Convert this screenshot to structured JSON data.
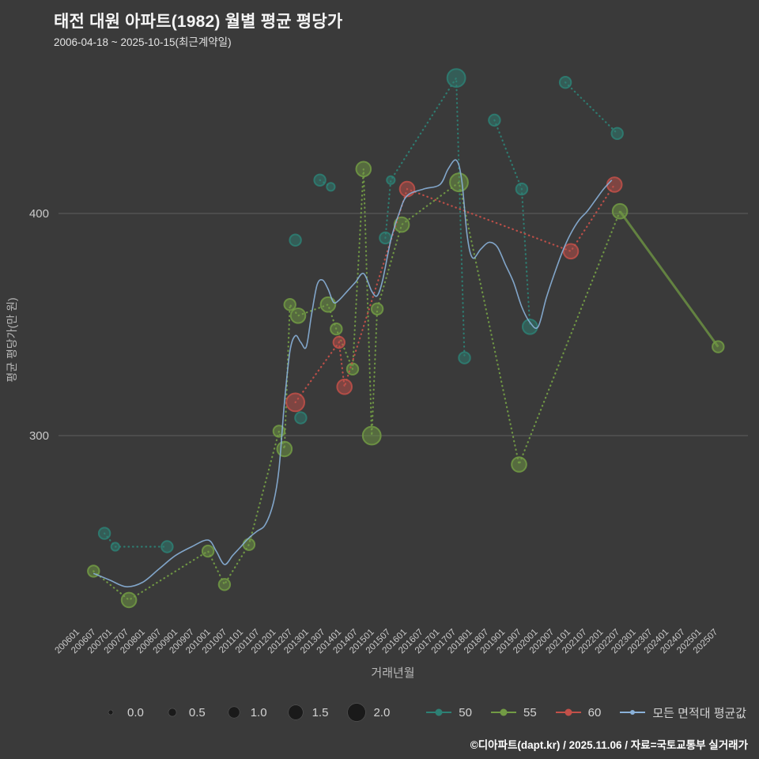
{
  "header": {
    "title": "태전 대원 아파트(1982) 월별 평균 평당가",
    "subtitle": "2006-04-18 ~ 2025-10-15(최근계약일)"
  },
  "footer": {
    "credit": "©디아파트(dapt.kr) / 2025.11.06 / 자료=국토교통부 실거래가"
  },
  "colors": {
    "background": "#3a3a3a",
    "grid": "#5d5d5d",
    "tick_label": "#c9c9c9",
    "axis_label": "#b9b9b9",
    "size_dot": "#1a1a1a",
    "series_50": "#2d8074",
    "series_55": "#729b44",
    "series_60": "#c25049",
    "series_avg": "#8ab1d9"
  },
  "chart_data": {
    "type": "scatter",
    "title": "태전 대원 아파트(1982) 월별 평균 평당가",
    "subtitle": "2006-04-18 ~ 2025-10-15(최근계약일)",
    "xlabel": "거래년월",
    "ylabel": "평균 평당가(만 원)",
    "y_ticks": [
      300,
      400
    ],
    "ylim": [
      220,
      470
    ],
    "grid": "horizontal-only",
    "legend_position": "bottom",
    "x_ticks": [
      "200601",
      "200607",
      "200701",
      "200707",
      "200801",
      "200807",
      "200901",
      "200907",
      "201001",
      "201007",
      "201101",
      "201107",
      "201201",
      "201207",
      "201301",
      "201307",
      "201401",
      "201407",
      "201501",
      "201507",
      "201601",
      "201607",
      "201701",
      "201707",
      "201801",
      "201807",
      "201901",
      "201907",
      "202001",
      "202007",
      "202101",
      "202107",
      "202201",
      "202207",
      "202301",
      "202307",
      "202401",
      "202407",
      "202501",
      "202507"
    ],
    "size_legend": [
      "0.0",
      "0.5",
      "1.0",
      "1.5",
      "2.0"
    ],
    "series": [
      {
        "name": "50",
        "kind": "bubble",
        "color": "#2d8074",
        "points": [
          [
            "200610",
            256,
            1.0
          ],
          [
            "200702",
            250,
            0.5
          ],
          [
            "200809",
            250,
            1.0
          ],
          [
            "201208",
            388,
            1.0
          ],
          [
            "201210",
            308,
            1.0
          ],
          [
            "201305",
            415,
            1.0
          ],
          [
            "201309",
            412,
            0.5
          ],
          [
            "201505",
            389,
            1.0
          ],
          [
            "201507",
            415,
            0.5
          ],
          [
            "201707",
            461,
            2.0
          ],
          [
            "201710",
            335,
            1.0
          ],
          [
            "201809",
            442,
            1.0
          ],
          [
            "201907",
            411,
            1.0
          ],
          [
            "201910",
            349,
            1.5
          ],
          [
            "202011",
            459,
            1.0
          ],
          [
            "202206",
            436,
            1.0
          ]
        ],
        "segments": [
          {
            "months": [
              "200610",
              "200702",
              "200809"
            ],
            "style": "dotted"
          },
          {
            "months": [
              "201305",
              "201309"
            ],
            "style": "dotted"
          },
          {
            "months": [
              "201505",
              "201507",
              "201707",
              "201710"
            ],
            "style": "dotted"
          },
          {
            "months": [
              "201809",
              "201907",
              "201910"
            ],
            "style": "dotted"
          },
          {
            "months": [
              "202011",
              "202206"
            ],
            "style": "dotted"
          }
        ]
      },
      {
        "name": "55",
        "kind": "bubble",
        "color": "#729b44",
        "points": [
          [
            "200606",
            239,
            1.0
          ],
          [
            "200707",
            226,
            1.5
          ],
          [
            "200912",
            248,
            1.0
          ],
          [
            "201006",
            233,
            1.0
          ],
          [
            "201103",
            251,
            1.0
          ],
          [
            "201202",
            302,
            1.0
          ],
          [
            "201204",
            294,
            1.5
          ],
          [
            "201206",
            359,
            1.0
          ],
          [
            "201209",
            354,
            1.5
          ],
          [
            "201308",
            359,
            1.5
          ],
          [
            "201311",
            348,
            1.0
          ],
          [
            "201405",
            330,
            1.0
          ],
          [
            "201409",
            420,
            1.5
          ],
          [
            "201412",
            300,
            2.0
          ],
          [
            "201502",
            357,
            1.0
          ],
          [
            "201511",
            395,
            1.5
          ],
          [
            "201708",
            414,
            2.0
          ],
          [
            "201906",
            287,
            1.5
          ],
          [
            "202207",
            401,
            1.5
          ],
          [
            "202507",
            340,
            1.0
          ]
        ],
        "segments": [
          {
            "months": [
              "200606",
              "200707",
              "200912",
              "201006",
              "201103",
              "201202",
              "201204",
              "201206",
              "201209",
              "201308",
              "201311",
              "201405",
              "201409",
              "201412",
              "201502",
              "201511",
              "201708",
              "201906",
              "202207"
            ],
            "style": "dotted"
          },
          {
            "months": [
              "202207",
              "202507"
            ],
            "style": "solid"
          }
        ]
      },
      {
        "name": "60",
        "kind": "bubble",
        "color": "#c25049",
        "points": [
          [
            "201208",
            315,
            2.0
          ],
          [
            "201312",
            342,
            1.0
          ],
          [
            "201402",
            322,
            1.5
          ],
          [
            "201601",
            411,
            1.5
          ],
          [
            "202101",
            383,
            1.5
          ],
          [
            "202205",
            413,
            1.5
          ]
        ],
        "segments": [
          {
            "months": [
              "201208",
              "201312",
              "201402",
              "201601",
              "202101",
              "202205"
            ],
            "style": "dotted"
          }
        ]
      },
      {
        "name": "모든 면적대 평균값",
        "kind": "line",
        "color": "#8ab1d9",
        "points": [
          [
            "200606",
            238
          ],
          [
            "200612",
            235
          ],
          [
            "200706",
            232
          ],
          [
            "200712",
            234
          ],
          [
            "200806",
            240
          ],
          [
            "200812",
            246
          ],
          [
            "200906",
            250
          ],
          [
            "200912",
            253
          ],
          [
            "201003",
            248
          ],
          [
            "201006",
            242
          ],
          [
            "201009",
            246
          ],
          [
            "201012",
            250
          ],
          [
            "201103",
            254
          ],
          [
            "201106",
            257
          ],
          [
            "201109",
            260
          ],
          [
            "201112",
            270
          ],
          [
            "201202",
            285
          ],
          [
            "201204",
            315
          ],
          [
            "201206",
            338
          ],
          [
            "201208",
            345
          ],
          [
            "201210",
            342
          ],
          [
            "201212",
            340
          ],
          [
            "201302",
            355
          ],
          [
            "201304",
            368
          ],
          [
            "201306",
            370
          ],
          [
            "201308",
            366
          ],
          [
            "201310",
            360
          ],
          [
            "201312",
            361
          ],
          [
            "201403",
            365
          ],
          [
            "201406",
            369
          ],
          [
            "201409",
            373
          ],
          [
            "201412",
            365
          ],
          [
            "201502",
            363
          ],
          [
            "201504",
            370
          ],
          [
            "201507",
            388
          ],
          [
            "201510",
            400
          ],
          [
            "201601",
            408
          ],
          [
            "201607",
            411
          ],
          [
            "201701",
            413
          ],
          [
            "201704",
            420
          ],
          [
            "201707",
            424
          ],
          [
            "201709",
            415
          ],
          [
            "201711",
            390
          ],
          [
            "201801",
            380
          ],
          [
            "201804",
            384
          ],
          [
            "201807",
            387
          ],
          [
            "201810",
            385
          ],
          [
            "201901",
            377
          ],
          [
            "201904",
            369
          ],
          [
            "201907",
            358
          ],
          [
            "201910",
            351
          ],
          [
            "202001",
            349
          ],
          [
            "202004",
            362
          ],
          [
            "202007",
            373
          ],
          [
            "202010",
            383
          ],
          [
            "202101",
            391
          ],
          [
            "202104",
            397
          ],
          [
            "202107",
            401
          ],
          [
            "202110",
            406
          ],
          [
            "202201",
            411
          ],
          [
            "202204",
            415
          ]
        ]
      }
    ]
  }
}
